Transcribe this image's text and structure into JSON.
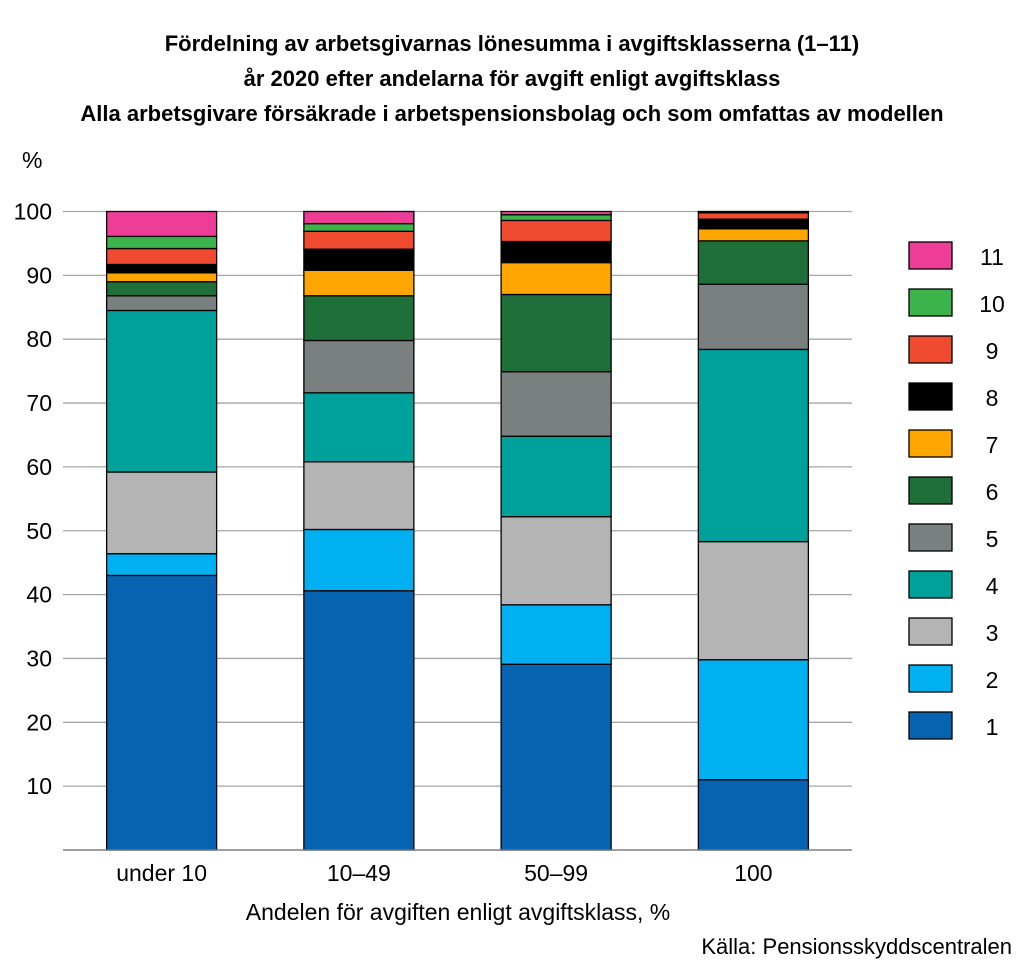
{
  "title_lines": [
    "Fördelning av arbetsgivarnas lönesumma i avgiftsklasserna (1–11)",
    "år 2020 efter andelarna för avgift enligt avgiftsklass",
    "Alla arbetsgivare försäkrade i arbetspensionsbolag och som omfattas av modellen"
  ],
  "source": "Källa: Pensionsskyddscentralen",
  "chart_data": {
    "type": "bar",
    "stacked": true,
    "title": "Fördelning av arbetsgivarnas lönesumma i avgiftsklasserna (1–11) år 2020 efter andelarna för avgift enligt avgiftsklass",
    "subtitle": "Alla arbetsgivare försäkrade i arbetspensionsbolag och som omfattas av modellen",
    "xlabel": "Andelen för avgiften enligt avgiftsklass, %",
    "ylabel": "%",
    "ylim": [
      0,
      100
    ],
    "yticks": [
      10,
      20,
      30,
      40,
      50,
      60,
      70,
      80,
      90,
      100
    ],
    "grid": true,
    "legend_position": "right",
    "categories": [
      "under 10",
      "10–49",
      "50–99",
      "100"
    ],
    "series": [
      {
        "name": "1",
        "color": "#0563b0",
        "values": [
          43.0,
          40.6,
          29.1,
          11.0
        ]
      },
      {
        "name": "2",
        "color": "#00b0f0",
        "values": [
          3.4,
          9.6,
          9.3,
          18.8
        ]
      },
      {
        "name": "3",
        "color": "#b4b4b4",
        "values": [
          12.8,
          10.6,
          13.8,
          18.5
        ]
      },
      {
        "name": "4",
        "color": "#00a19a",
        "values": [
          25.3,
          10.8,
          12.6,
          30.1
        ]
      },
      {
        "name": "5",
        "color": "#7a7f80",
        "values": [
          2.3,
          8.2,
          10.1,
          10.2
        ]
      },
      {
        "name": "6",
        "color": "#1e6f3a",
        "values": [
          2.2,
          7.0,
          12.1,
          6.8
        ]
      },
      {
        "name": "7",
        "color": "#ffa500",
        "values": [
          1.4,
          4.0,
          5.0,
          1.9
        ]
      },
      {
        "name": "8",
        "color": "#000000",
        "values": [
          1.3,
          3.3,
          3.3,
          1.5
        ]
      },
      {
        "name": "9",
        "color": "#f04b30",
        "values": [
          2.5,
          2.8,
          3.3,
          1.0
        ]
      },
      {
        "name": "10",
        "color": "#3cb44b",
        "values": [
          1.9,
          1.2,
          0.9,
          0
        ]
      },
      {
        "name": "11",
        "color": "#ee3d96",
        "values": [
          3.9,
          1.9,
          0.5,
          0.2
        ]
      }
    ]
  }
}
